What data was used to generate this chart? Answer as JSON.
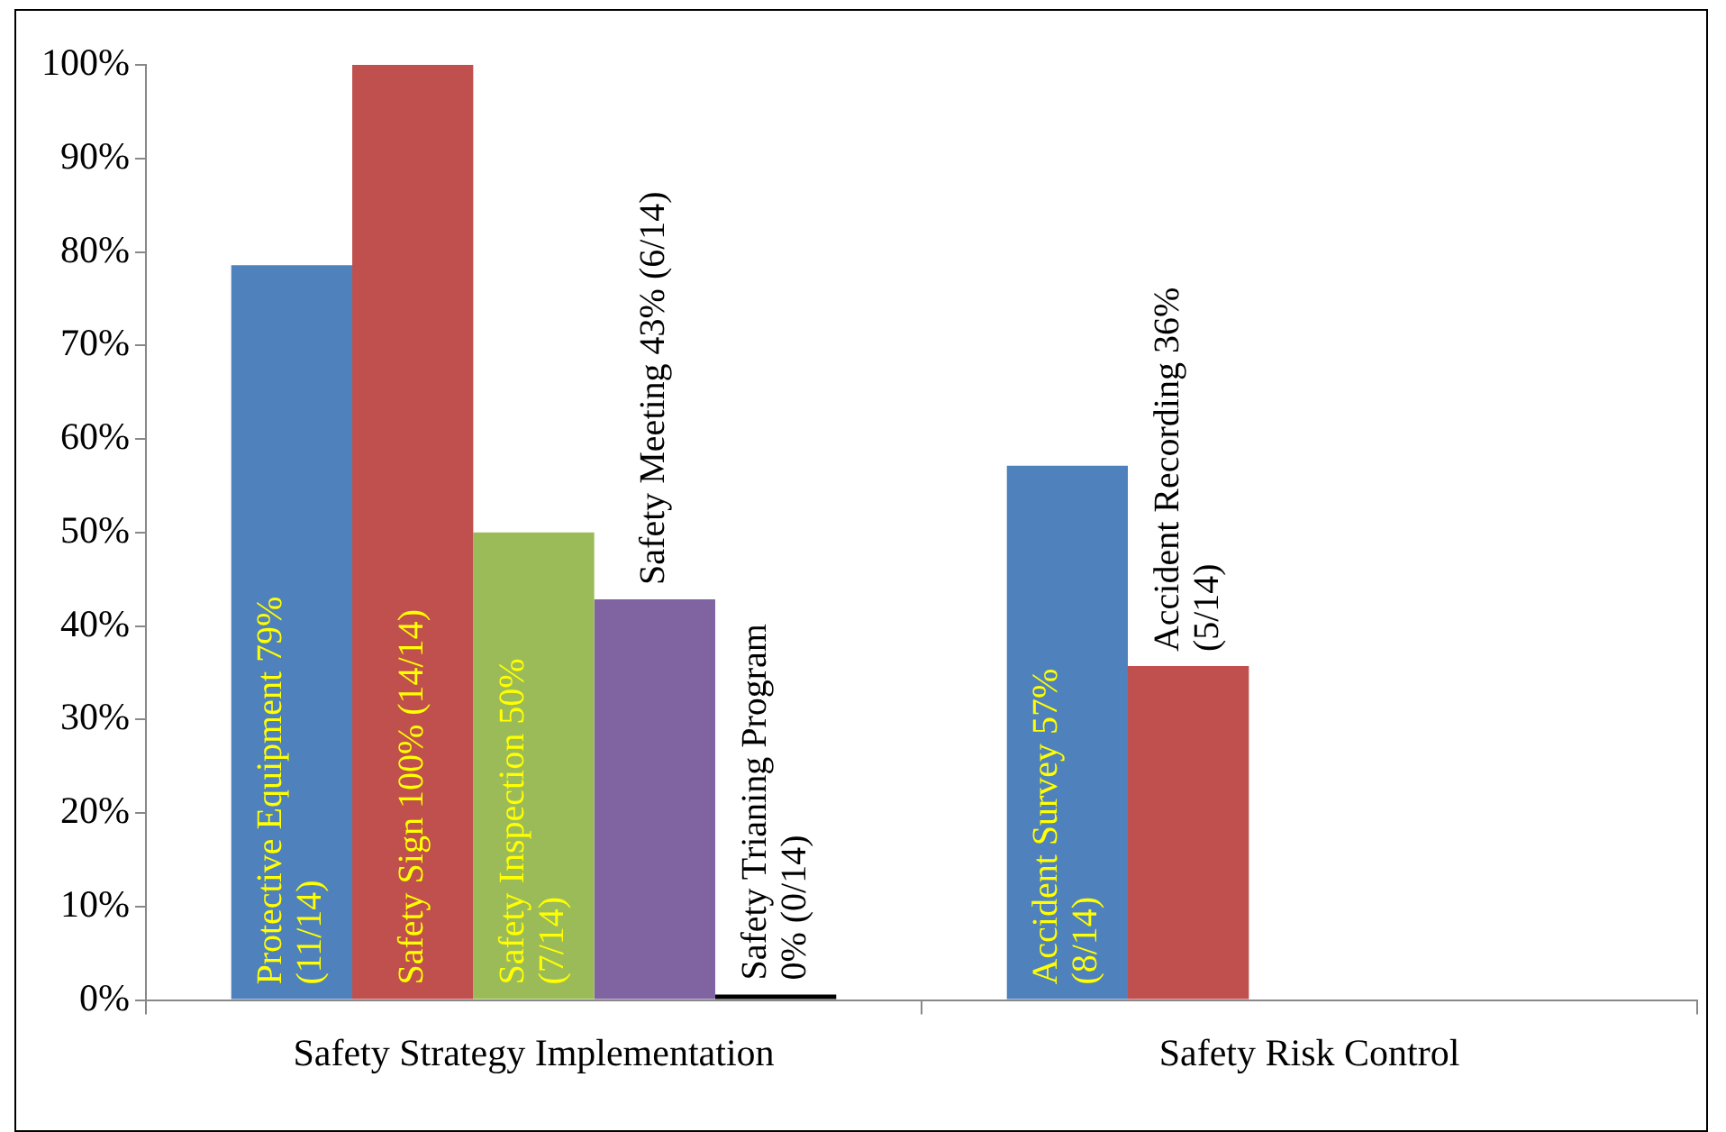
{
  "chart_data": {
    "type": "bar",
    "categories": [
      "Safety Strategy Implementation",
      "Safety Risk Control"
    ],
    "series": [
      {
        "color": "#4f81bd",
        "values": [
          78.57,
          57.14
        ],
        "value_labels": [
          "Protective Equipment 79%\n(11/14)",
          "Accident Survey 57%\n(8/14)"
        ]
      },
      {
        "color": "#c0504d",
        "values": [
          100,
          35.71
        ],
        "value_labels": [
          "Safety Sign 100% (14/14)",
          "Accident Recording 36%\n(5/14)"
        ]
      },
      {
        "color": "#9bbb59",
        "values": [
          50,
          null
        ],
        "value_labels": [
          "Safety Inspection 50%\n(7/14)",
          null
        ]
      },
      {
        "color": "#8064a2",
        "values": [
          42.86,
          null
        ],
        "value_labels": [
          "Safety Meeting 43% (6/14)",
          null
        ]
      },
      {
        "color": "#000000",
        "values": [
          0,
          null
        ],
        "value_labels": [
          "Safety Trianing Program\n0% (0/14)",
          null
        ]
      }
    ],
    "ylim": [
      0,
      100
    ],
    "yticks": [
      {
        "value": 0,
        "label": "0%"
      },
      {
        "value": 10,
        "label": "10%"
      },
      {
        "value": 20,
        "label": "20%"
      },
      {
        "value": 30,
        "label": "30%"
      },
      {
        "value": 40,
        "label": "40%"
      },
      {
        "value": 50,
        "label": "50%"
      },
      {
        "value": 60,
        "label": "60%"
      },
      {
        "value": 70,
        "label": "70%"
      },
      {
        "value": 80,
        "label": "80%"
      },
      {
        "value": 90,
        "label": "90%"
      },
      {
        "value": 100,
        "label": "100%"
      }
    ],
    "grid": false,
    "legend": false
  }
}
